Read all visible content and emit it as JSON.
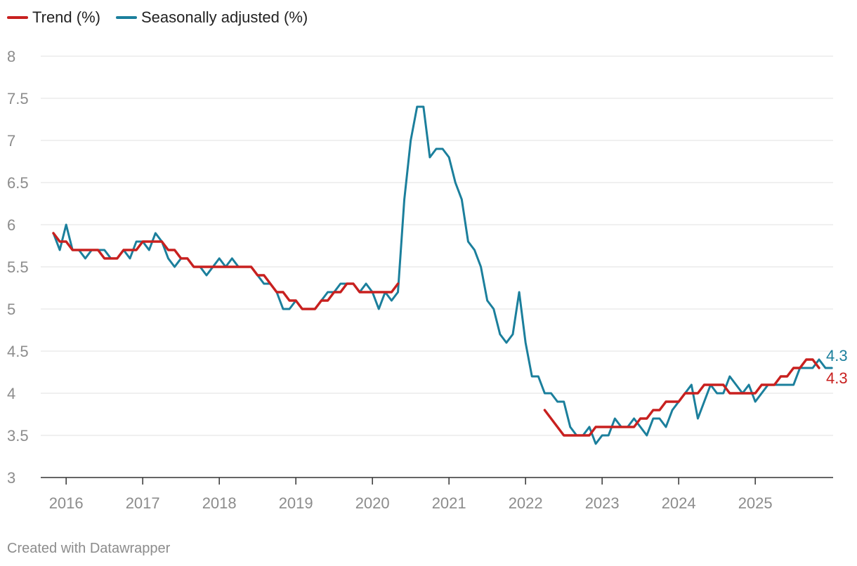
{
  "legend": {
    "trend_label": "Trend (%)",
    "sa_label": "Seasonally adjusted (%)"
  },
  "credit": "Created with Datawrapper",
  "colors": {
    "trend": "#c8201f",
    "sa": "#1b7f9c",
    "grid": "#e2e2e2",
    "tick_text": "#8c8c8c",
    "axis": "#333333"
  },
  "chart_data": {
    "type": "line",
    "title": "",
    "xlabel": "",
    "ylabel": "",
    "ylim": [
      3,
      8
    ],
    "yticks": [
      "3",
      "3.5",
      "4",
      "4.5",
      "5",
      "5.5",
      "6",
      "6.5",
      "7",
      "7.5",
      "8"
    ],
    "xticks": [
      "2016",
      "2017",
      "2018",
      "2019",
      "2020",
      "2021",
      "2022",
      "2023",
      "2024",
      "2025"
    ],
    "x_start": "2015-11",
    "x_end": "2025-11",
    "series": [
      {
        "name": "Trend (%)",
        "key": "trend",
        "start": "2015-11",
        "end_label": "4.3",
        "segments": [
          {
            "start": "2015-11",
            "values": [
              5.9,
              5.8,
              5.8,
              5.7,
              5.7,
              5.7,
              5.7,
              5.7,
              5.6,
              5.6,
              5.6,
              5.7,
              5.7,
              5.7,
              5.8,
              5.8,
              5.8,
              5.8,
              5.7,
              5.7,
              5.6,
              5.6,
              5.5,
              5.5,
              5.5,
              5.5,
              5.5,
              5.5,
              5.5,
              5.5,
              5.5,
              5.5,
              5.4,
              5.4,
              5.3,
              5.2,
              5.2,
              5.1,
              5.1,
              5.0,
              5.0,
              5.0,
              5.1,
              5.1,
              5.2,
              5.2,
              5.3,
              5.3,
              5.2,
              5.2,
              5.2,
              5.2,
              5.2,
              5.2,
              5.3
            ]
          },
          {
            "start": "2022-04",
            "values": [
              3.8,
              3.7,
              3.6,
              3.5,
              3.5,
              3.5,
              3.5,
              3.5,
              3.6,
              3.6,
              3.6,
              3.6,
              3.6,
              3.6,
              3.6,
              3.7,
              3.7,
              3.8,
              3.8,
              3.9,
              3.9,
              3.9,
              4.0,
              4.0,
              4.0,
              4.1,
              4.1,
              4.1,
              4.1,
              4.0,
              4.0,
              4.0,
              4.0,
              4.0,
              4.1,
              4.1,
              4.1,
              4.2,
              4.2,
              4.3,
              4.3,
              4.4,
              4.4,
              4.3
            ]
          }
        ]
      },
      {
        "name": "Seasonally adjusted (%)",
        "key": "sa",
        "start": "2015-11",
        "end_label": "4.3",
        "values": [
          5.9,
          5.7,
          6.0,
          5.7,
          5.7,
          5.6,
          5.7,
          5.7,
          5.7,
          5.6,
          5.6,
          5.7,
          5.6,
          5.8,
          5.8,
          5.7,
          5.9,
          5.8,
          5.6,
          5.5,
          5.6,
          5.6,
          5.5,
          5.5,
          5.4,
          5.5,
          5.6,
          5.5,
          5.6,
          5.5,
          5.5,
          5.5,
          5.4,
          5.3,
          5.3,
          5.2,
          5.0,
          5.0,
          5.1,
          5.0,
          5.0,
          5.0,
          5.1,
          5.2,
          5.2,
          5.3,
          5.3,
          5.3,
          5.2,
          5.3,
          5.2,
          5.0,
          5.2,
          5.1,
          5.2,
          6.3,
          7.0,
          7.4,
          7.4,
          6.8,
          6.9,
          6.9,
          6.8,
          6.5,
          6.3,
          5.8,
          5.7,
          5.5,
          5.1,
          5.0,
          4.7,
          4.6,
          4.7,
          5.2,
          4.6,
          4.2,
          4.2,
          4.0,
          4.0,
          3.9,
          3.9,
          3.6,
          3.5,
          3.5,
          3.6,
          3.4,
          3.5,
          3.5,
          3.7,
          3.6,
          3.6,
          3.7,
          3.6,
          3.5,
          3.7,
          3.7,
          3.6,
          3.8,
          3.9,
          4.0,
          4.1,
          3.7,
          3.9,
          4.1,
          4.0,
          4.0,
          4.2,
          4.1,
          4.0,
          4.1,
          3.9,
          4.0,
          4.1,
          4.1,
          4.1,
          4.1,
          4.1,
          4.3,
          4.3,
          4.3,
          4.4,
          4.3,
          4.3
        ]
      }
    ]
  }
}
